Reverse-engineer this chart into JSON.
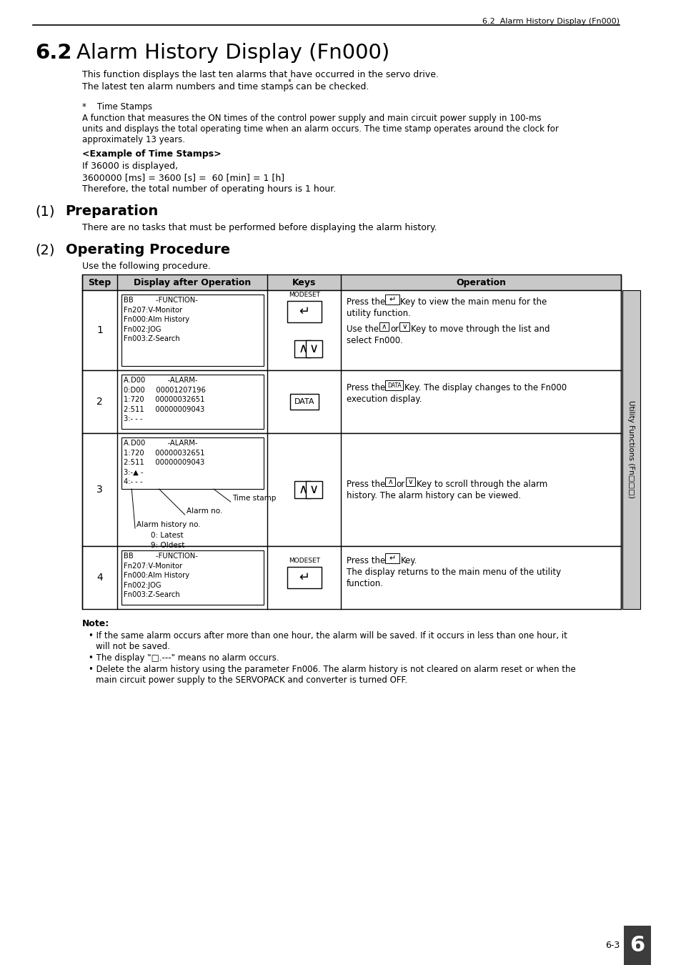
{
  "page_header": "6.2  Alarm History Display (Fn000)",
  "section_number": "6.2",
  "section_title": "Alarm History Display (Fn000)",
  "body_text_1": "This function displays the last ten alarms that have occurred in the servo drive.",
  "body_text_2": "The latest ten alarm numbers and time stamps",
  "body_text_2b": " can be checked.",
  "footnote_marker": "*",
  "footnote_label": "*    Time Stamps",
  "footnote_body_1": "A function that measures the ON times of the control power supply and main circuit power supply in 100-ms",
  "footnote_body_2": "units and displays the total operating time when an alarm occurs. The time stamp operates around the clock for",
  "footnote_body_3": "approximately 13 years.",
  "example_header": "<Example of Time Stamps>",
  "example_line1": "If 36000 is displayed,",
  "example_line2": "3600000 [ms] = 3600 [s] =  60 [min] = 1 [h]",
  "example_line3": "Therefore, the total number of operating hours is 1 hour.",
  "section1_number": "(1)",
  "section1_title": "Preparation",
  "section1_body": "There are no tasks that must be performed before displaying the alarm history.",
  "section2_number": "(2)",
  "section2_title": "Operating Procedure",
  "section2_body": "Use the following procedure.",
  "table_headers": [
    "Step",
    "Display after Operation",
    "Keys",
    "Operation"
  ],
  "step1_display": "BB          -FUNCTION-\nFn207:V-Monitor\nFn000:Alm History\nFn002:JOG\nFn003:Z-Search",
  "step2_display": "A.D00          -ALARM-\n0:D00     00001207196\n1:720     00000032651\n2:511     00000009043\n3:- - -",
  "step3_display": "A.D00          -ALARM-\n1:720     00000032651\n2:511     00000009043\n3:-▲ -\n4:- - -",
  "step4_display": "BB          -FUNCTION-\nFn207:V-Monitor\nFn000:Alm History\nFn002:JOG\nFn003:Z-Search",
  "note_header": "Note:",
  "note_bullet1_line1": "If the same alarm occurs after more than one hour, the alarm will be saved. If it occurs in less than one hour, it",
  "note_bullet1_line2": "will not be saved.",
  "note_bullet2": "The display \"□.---\" means no alarm occurs.",
  "note_bullet3_line1": "Delete the alarm history using the parameter Fn006. The alarm history is not cleared on alarm reset or when the",
  "note_bullet3_line2": "main circuit power supply to the SERVOPACK and converter is turned OFF.",
  "side_label": "Utility Functions (Fn□□□)",
  "page_number": "6-3",
  "chapter_number": "6",
  "bg_color": "#ffffff",
  "text_color": "#000000",
  "table_header_bg": "#c8c8c8",
  "side_label_bg": "#c8c8c8",
  "chapter_box_bg": "#3c3c3c"
}
